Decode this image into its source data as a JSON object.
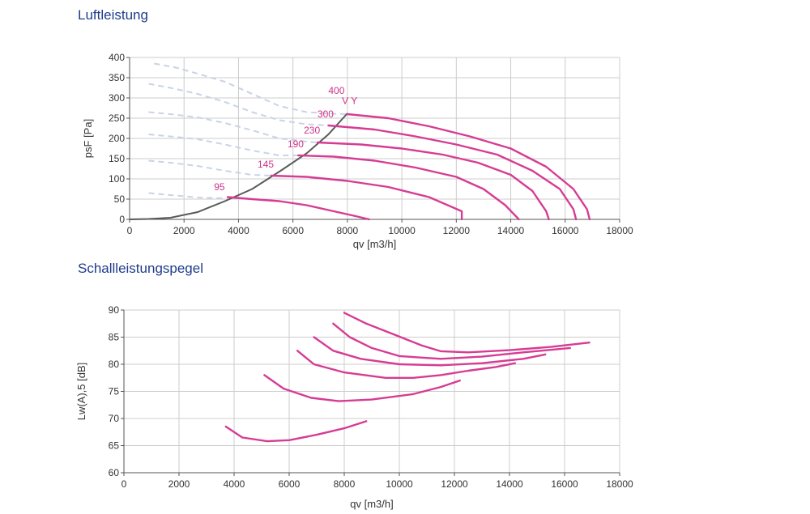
{
  "titles": {
    "top": "Luftleistung",
    "bottom": "Schallleistungspegel"
  },
  "colors": {
    "curve": "#d63c93",
    "system": "#5a5a5a",
    "dashed": "#c9d3e6",
    "grid": "#cccccc",
    "title": "#1f3b8c"
  },
  "chart_data": [
    {
      "type": "line",
      "title": "Luftleistung",
      "xlabel": "qv [m3/h]",
      "ylabel": "psF [Pa]",
      "xlim": [
        0,
        18000
      ],
      "ylim": [
        0,
        400
      ],
      "xticks": [
        0,
        2000,
        4000,
        6000,
        8000,
        10000,
        12000,
        14000,
        16000,
        18000
      ],
      "yticks": [
        0,
        50,
        100,
        150,
        200,
        250,
        300,
        350,
        400
      ],
      "grid": true,
      "extra_labels": [
        {
          "text": "V Y",
          "x": 7800,
          "y": 285
        }
      ],
      "series": [
        {
          "name": "95",
          "label_at": [
            3100,
            72
          ],
          "points": [
            [
              3600,
              55
            ],
            [
              4500,
              50
            ],
            [
              5500,
              45
            ],
            [
              6500,
              35
            ],
            [
              7500,
              20
            ],
            [
              8300,
              8
            ],
            [
              8800,
              0
            ]
          ]
        },
        {
          "name": "145",
          "label_at": [
            4700,
            128
          ],
          "points": [
            [
              5200,
              108
            ],
            [
              6500,
              105
            ],
            [
              8000,
              95
            ],
            [
              9500,
              80
            ],
            [
              11000,
              55
            ],
            [
              12200,
              20
            ],
            [
              12200,
              0
            ]
          ]
        },
        {
          "name": "190",
          "label_at": [
            5800,
            178
          ],
          "points": [
            [
              6200,
              158
            ],
            [
              7500,
              155
            ],
            [
              9000,
              145
            ],
            [
              10500,
              128
            ],
            [
              12000,
              105
            ],
            [
              13000,
              75
            ],
            [
              13800,
              35
            ],
            [
              14300,
              0
            ]
          ]
        },
        {
          "name": "230",
          "label_at": [
            6400,
            212
          ],
          "points": [
            [
              6900,
              190
            ],
            [
              8500,
              185
            ],
            [
              10000,
              175
            ],
            [
              11500,
              160
            ],
            [
              12800,
              140
            ],
            [
              14000,
              110
            ],
            [
              14800,
              70
            ],
            [
              15300,
              20
            ],
            [
              15400,
              0
            ]
          ]
        },
        {
          "name": "300",
          "label_at": [
            6900,
            252
          ],
          "points": [
            [
              7300,
              232
            ],
            [
              9000,
              222
            ],
            [
              10500,
              205
            ],
            [
              12000,
              185
            ],
            [
              13500,
              160
            ],
            [
              14800,
              120
            ],
            [
              15800,
              75
            ],
            [
              16300,
              25
            ],
            [
              16400,
              0
            ]
          ]
        },
        {
          "name": "400",
          "label_at": [
            7300,
            310
          ],
          "points": [
            [
              8000,
              260
            ],
            [
              9500,
              250
            ],
            [
              11000,
              230
            ],
            [
              12500,
              205
            ],
            [
              14000,
              175
            ],
            [
              15300,
              130
            ],
            [
              16300,
              75
            ],
            [
              16800,
              25
            ],
            [
              16900,
              0
            ]
          ]
        }
      ],
      "system_curve": [
        [
          0,
          0
        ],
        [
          700,
          1
        ],
        [
          1500,
          4
        ],
        [
          2500,
          18
        ],
        [
          3500,
          45
        ],
        [
          4500,
          75
        ],
        [
          5500,
          118
        ],
        [
          6500,
          163
        ],
        [
          7300,
          210
        ],
        [
          8000,
          262
        ]
      ],
      "dashed_curves": [
        [
          [
            700,
            65
          ],
          [
            1500,
            60
          ],
          [
            2500,
            54
          ],
          [
            3500,
            52
          ]
        ],
        [
          [
            700,
            145
          ],
          [
            1500,
            140
          ],
          [
            2500,
            132
          ],
          [
            3500,
            120
          ],
          [
            4500,
            110
          ],
          [
            5200,
            108
          ]
        ],
        [
          [
            700,
            210
          ],
          [
            1500,
            205
          ],
          [
            2500,
            198
          ],
          [
            3500,
            185
          ],
          [
            4500,
            170
          ],
          [
            5500,
            158
          ],
          [
            6200,
            158
          ]
        ],
        [
          [
            700,
            265
          ],
          [
            1500,
            260
          ],
          [
            2500,
            252
          ],
          [
            3500,
            238
          ],
          [
            4500,
            220
          ],
          [
            5500,
            200
          ],
          [
            6500,
            192
          ],
          [
            6900,
            190
          ]
        ],
        [
          [
            700,
            335
          ],
          [
            1500,
            325
          ],
          [
            2500,
            310
          ],
          [
            3500,
            290
          ],
          [
            4500,
            265
          ],
          [
            5500,
            245
          ],
          [
            6500,
            235
          ],
          [
            7300,
            232
          ]
        ],
        [
          [
            900,
            385
          ],
          [
            1700,
            375
          ],
          [
            2500,
            360
          ],
          [
            3500,
            340
          ],
          [
            4500,
            310
          ],
          [
            5500,
            280
          ],
          [
            6500,
            265
          ],
          [
            7500,
            261
          ],
          [
            8000,
            260
          ]
        ]
      ]
    },
    {
      "type": "line",
      "title": "Schallleistungspegel",
      "xlabel": "qv [m3/h]",
      "ylabel": "Lw(A),5 [dB]",
      "xlim": [
        0,
        18000
      ],
      "ylim": [
        60,
        90
      ],
      "xticks": [
        0,
        2000,
        4000,
        6000,
        8000,
        10000,
        12000,
        14000,
        16000,
        18000
      ],
      "yticks": [
        60,
        65,
        70,
        75,
        80,
        85,
        90
      ],
      "grid": true,
      "series": [
        {
          "name": "95",
          "points": [
            [
              3700,
              68.5
            ],
            [
              4300,
              66.5
            ],
            [
              5200,
              65.8
            ],
            [
              6000,
              66
            ],
            [
              7000,
              67
            ],
            [
              8000,
              68.2
            ],
            [
              8800,
              69.5
            ]
          ]
        },
        {
          "name": "145",
          "points": [
            [
              5100,
              78
            ],
            [
              5800,
              75.5
            ],
            [
              6800,
              73.8
            ],
            [
              7800,
              73.2
            ],
            [
              9000,
              73.5
            ],
            [
              10500,
              74.5
            ],
            [
              11500,
              75.8
            ],
            [
              12200,
              77
            ]
          ]
        },
        {
          "name": "190",
          "points": [
            [
              6300,
              82.5
            ],
            [
              6900,
              80
            ],
            [
              8000,
              78.5
            ],
            [
              9500,
              77.5
            ],
            [
              10500,
              77.5
            ],
            [
              11500,
              78
            ],
            [
              12500,
              78.8
            ],
            [
              13500,
              79.5
            ],
            [
              14200,
              80.2
            ]
          ]
        },
        {
          "name": "230",
          "points": [
            [
              6900,
              85
            ],
            [
              7600,
              82.5
            ],
            [
              8600,
              81
            ],
            [
              10000,
              80
            ],
            [
              11500,
              79.8
            ],
            [
              13000,
              80.2
            ],
            [
              14500,
              81
            ],
            [
              15300,
              81.8
            ]
          ]
        },
        {
          "name": "300",
          "points": [
            [
              7600,
              87.5
            ],
            [
              8200,
              85
            ],
            [
              9000,
              83
            ],
            [
              10000,
              81.5
            ],
            [
              11500,
              81
            ],
            [
              13000,
              81.4
            ],
            [
              14500,
              82.2
            ],
            [
              16200,
              83
            ]
          ]
        },
        {
          "name": "400",
          "points": [
            [
              8000,
              89.5
            ],
            [
              8800,
              87.5
            ],
            [
              9800,
              85.5
            ],
            [
              10800,
              83.5
            ],
            [
              11500,
              82.4
            ],
            [
              12500,
              82.2
            ],
            [
              14000,
              82.6
            ],
            [
              15500,
              83.2
            ],
            [
              16900,
              84
            ]
          ]
        }
      ]
    }
  ]
}
